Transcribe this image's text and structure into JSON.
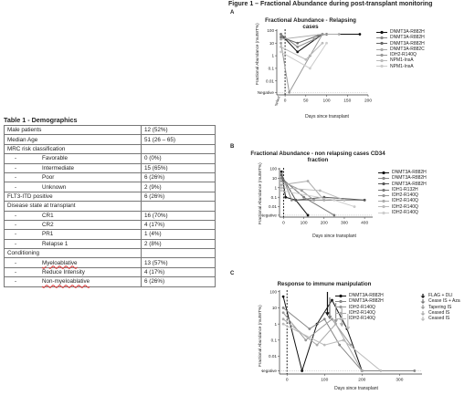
{
  "figure_title": "Figure 1 – Fractional Abundance during post-transplant monitoring",
  "table": {
    "title": "Table 1 - Demographics",
    "rows": [
      {
        "label": "Male patients",
        "value": "12 (52%)",
        "indent": 0
      },
      {
        "label": "Median Age",
        "value": "51 (26 – 65)",
        "indent": 0
      },
      {
        "label": "MRC risk classification",
        "value": "",
        "indent": 0
      },
      {
        "label": "Favorable",
        "value": "0 (0%)",
        "indent": 1
      },
      {
        "label": "Intermediate",
        "value": "15 (65%)",
        "indent": 1
      },
      {
        "label": "Poor",
        "value": "6 (26%)",
        "indent": 1
      },
      {
        "label": "Unknown",
        "value": "2 (9%)",
        "indent": 1
      },
      {
        "label": "FLT3-ITD positive",
        "value": "6 (26%)",
        "indent": 0
      },
      {
        "label": "Disease state at transplant",
        "value": "",
        "indent": 0
      },
      {
        "label": "CR1",
        "value": "16 (70%)",
        "indent": 1
      },
      {
        "label": "CR2",
        "value": "4 (17%)",
        "indent": 1
      },
      {
        "label": "PR1",
        "value": "1 (4%)",
        "indent": 1
      },
      {
        "label": "Relapse 1",
        "value": "2 (8%)",
        "indent": 1
      },
      {
        "label": "Conditioning",
        "value": "",
        "indent": 0
      },
      {
        "label": "Myeloablative",
        "value": "13 (57%)",
        "indent": 1,
        "squiggle": true
      },
      {
        "label": "Reduce Intensity",
        "value": "4 (17%)",
        "indent": 1
      },
      {
        "label": "Non-myeloablative",
        "value": "6 (26%)",
        "indent": 1,
        "squiggle": true
      }
    ]
  },
  "chart_data": [
    {
      "letter": "A",
      "type": "line",
      "title": "Fractional Abundance - Relapsing cases",
      "ylabel": "Fractional Abundance (mutWT%)",
      "xlabel": "Days since transplant",
      "xlim": [
        -20,
        200
      ],
      "xticks": [
        "0",
        "50",
        "100",
        "150",
        "200"
      ],
      "yticks": [
        "100",
        "10",
        "1",
        "0.1",
        "0.01",
        "Negative"
      ],
      "extra_xtick": "Pre-transplant",
      "series": [
        {
          "name": "DNMT3A-R882H",
          "color": "#111111",
          "x": [
            -10,
            30,
            90,
            180
          ],
          "y": [
            50,
            2,
            50,
            50
          ]
        },
        {
          "name": "DNMT3A-R882H",
          "color": "#888888",
          "x": [
            -10,
            30,
            70,
            90
          ],
          "y": [
            50,
            5,
            20,
            50
          ]
        },
        {
          "name": "DNMT3A-R882H",
          "color": "#666666",
          "x": [
            -10,
            30,
            80,
            100
          ],
          "y": [
            30,
            10,
            40,
            50
          ]
        },
        {
          "name": "DNMT3A-R882C",
          "color": "#aaaaaa",
          "x": [
            -10,
            90,
            130
          ],
          "y": [
            20,
            50,
            50
          ]
        },
        {
          "name": "IDH2-R140Q",
          "color": "#999999",
          "x": [
            -10,
            10,
            60,
            90
          ],
          "y": [
            10,
            "Negative",
            1,
            50
          ]
        },
        {
          "name": "NPM1-InsA",
          "color": "#bbbbbb",
          "x": [
            -10,
            50,
            90
          ],
          "y": [
            5,
            0.5,
            10
          ]
        },
        {
          "name": "NPM1-InsA",
          "color": "#cccccc",
          "x": [
            -10,
            60,
            100
          ],
          "y": [
            2,
            0.1,
            10
          ]
        }
      ]
    },
    {
      "letter": "B",
      "type": "line",
      "title": "Fractional Abundance - non relapsing cases CD34 fraction",
      "ylabel": "Fractional Abundance (mutWT%)",
      "xlabel": "Days since transplant",
      "xlim": [
        -20,
        440
      ],
      "xticks": [
        "0",
        "100",
        "200",
        "300",
        "400"
      ],
      "yticks": [
        "100",
        "10",
        "1",
        "0.1",
        "0.01",
        "Negative"
      ],
      "series": [
        {
          "name": "DNMT3A-R882H",
          "color": "#111111",
          "x": [
            -10,
            10,
            60,
            120
          ],
          "y": [
            50,
            0.1,
            0.05,
            "Negative"
          ]
        },
        {
          "name": "DNMT3A-R882H",
          "color": "#888888",
          "x": [
            -10,
            40,
            150,
            300,
            400
          ],
          "y": [
            30,
            0.05,
            0.05,
            0.05,
            0.05
          ]
        },
        {
          "name": "DNMT3A-R882H",
          "color": "#555555",
          "x": [
            -10,
            60,
            200,
            400
          ],
          "y": [
            20,
            0.05,
            0.1,
            0.05
          ]
        },
        {
          "name": "IDH1-R132H",
          "color": "#777777",
          "x": [
            -10,
            100,
            250
          ],
          "y": [
            10,
            0.1,
            "Negative"
          ]
        },
        {
          "name": "IDH2-R140Q",
          "color": "#999999",
          "x": [
            -10,
            90,
            150,
            200
          ],
          "y": [
            5,
            0.5,
            0.05,
            0.05
          ]
        },
        {
          "name": "IDH2-R140Q",
          "color": "#aaaaaa",
          "x": [
            -10,
            120,
            200
          ],
          "y": [
            2,
            5,
            0.05
          ]
        },
        {
          "name": "IDH2-R140Q",
          "color": "#bbbbbb",
          "x": [
            -10,
            180,
            300
          ],
          "y": [
            1,
            0.5,
            0.05
          ]
        },
        {
          "name": "IDH2-R140Q",
          "color": "#cccccc",
          "x": [
            -10,
            250,
            350
          ],
          "y": [
            0.5,
            0.05,
            0.01
          ]
        }
      ]
    },
    {
      "letter": "C",
      "type": "line",
      "title": "Response to immune manipulation",
      "ylabel": "Fractional Abundance (mutWT%)",
      "xlabel": "Days since transplant",
      "xlim": [
        -20,
        360
      ],
      "xticks": [
        "0",
        "100",
        "200",
        "300"
      ],
      "yticks": [
        "100",
        "10",
        "1",
        "0.1",
        "0.01",
        "Negative"
      ],
      "series": [
        {
          "name": "DNMT3A-R882H",
          "color": "#111111",
          "x": [
            -10,
            40,
            80,
            120,
            160,
            200
          ],
          "y": [
            50,
            "Negative",
            1,
            30,
            0.5,
            "Negative"
          ]
        },
        {
          "name": "DNMT3A-R882H",
          "color": "#888888",
          "x": [
            -10,
            60,
            100,
            140,
            200,
            340
          ],
          "y": [
            10,
            0.5,
            2,
            0.05,
            "Negative",
            "Negative"
          ]
        },
        {
          "name": "IDH2-R140Q",
          "color": "#999999",
          "x": [
            -10,
            50,
            120,
            170
          ],
          "y": [
            5,
            0.1,
            2,
            0.05
          ]
        },
        {
          "name": "IDH2-R140Q",
          "color": "#aaaaaa",
          "x": [
            -10,
            80,
            130,
            200
          ],
          "y": [
            2,
            0.05,
            1,
            "Negative"
          ]
        },
        {
          "name": "IDH2-R140Q",
          "color": "#bbbbbb",
          "x": [
            -10,
            100,
            150,
            250
          ],
          "y": [
            1,
            0.05,
            0.1,
            "Negative"
          ]
        }
      ],
      "events_legend": [
        {
          "label": "FLAG + DLI",
          "color": "#111111"
        },
        {
          "label": "Cease IS + Aza",
          "color": "#777777"
        },
        {
          "label": "Tapering IS",
          "color": "#999999"
        },
        {
          "label": "Ceased IS",
          "color": "#aaaaaa"
        },
        {
          "label": "Ceased IS",
          "color": "#bbbbbb"
        }
      ],
      "event_days": [
        120,
        120,
        130,
        140,
        150
      ]
    }
  ]
}
